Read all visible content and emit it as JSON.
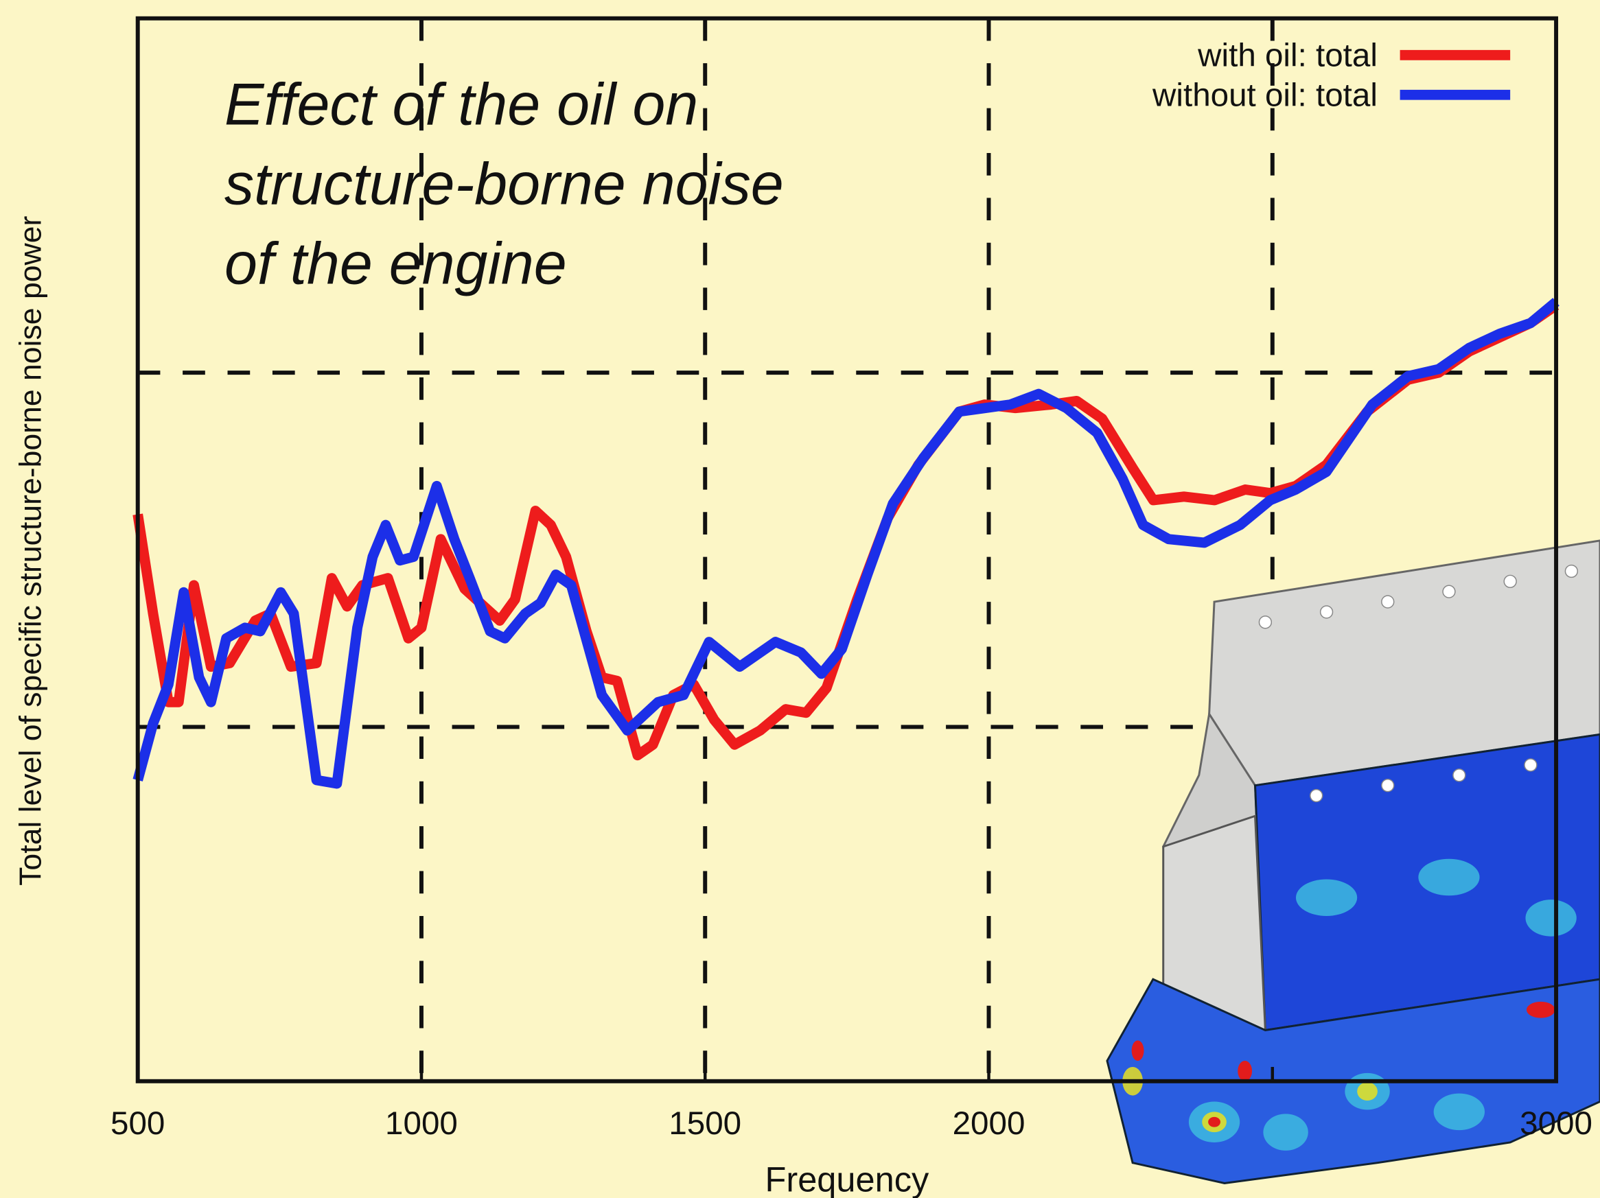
{
  "chart_data": {
    "type": "line",
    "title": [
      "Effect of the oil on",
      "structure-borne noise",
      "of the engine"
    ],
    "title_color": "#e8201c",
    "x_label": "Frequency",
    "y_label": "Total level of specific structure-borne noise power",
    "xlim": [
      500,
      3000
    ],
    "xticks": [
      500,
      1000,
      1500,
      2000,
      2500,
      3000
    ],
    "x_tick_labels_shown": [
      500,
      1000,
      1500,
      2000,
      3000
    ],
    "ylim": [
      0,
      3
    ],
    "ygrid": [
      1,
      2
    ],
    "grid": true,
    "legend": "top-right",
    "series": [
      {
        "name": "with oil: total",
        "color": "#ee1c1c",
        "x": [
          500,
          527,
          554,
          572,
          599,
          629,
          662,
          707,
          734,
          770,
          815,
          842,
          869,
          896,
          941,
          977,
          1000,
          1034,
          1076,
          1138,
          1165,
          1201,
          1228,
          1255,
          1291,
          1318,
          1345,
          1381,
          1408,
          1444,
          1480,
          1516,
          1552,
          1597,
          1642,
          1678,
          1714,
          1768,
          1822,
          1876,
          1948,
          1993,
          2047,
          2110,
          2155,
          2200,
          2254,
          2290,
          2344,
          2398,
          2452,
          2496,
          2541,
          2595,
          2667,
          2739,
          2793,
          2847,
          2901,
          2955,
          3000
        ],
        "values": [
          1.6,
          1.32,
          1.07,
          1.07,
          1.4,
          1.17,
          1.18,
          1.3,
          1.32,
          1.17,
          1.18,
          1.42,
          1.34,
          1.4,
          1.42,
          1.25,
          1.28,
          1.53,
          1.39,
          1.3,
          1.36,
          1.61,
          1.57,
          1.48,
          1.27,
          1.14,
          1.13,
          0.92,
          0.95,
          1.09,
          1.12,
          1.02,
          0.95,
          0.99,
          1.05,
          1.04,
          1.11,
          1.36,
          1.59,
          1.74,
          1.89,
          1.91,
          1.9,
          1.91,
          1.92,
          1.87,
          1.73,
          1.64,
          1.65,
          1.64,
          1.67,
          1.66,
          1.68,
          1.74,
          1.89,
          1.98,
          2.0,
          2.06,
          2.1,
          2.14,
          2.19
        ]
      },
      {
        "name": "without oil: total",
        "color": "#1c2fe8",
        "x": [
          500,
          527,
          554,
          581,
          608,
          629,
          656,
          689,
          716,
          752,
          775,
          815,
          851,
          887,
          914,
          937,
          962,
          986,
          1027,
          1058,
          1085,
          1121,
          1147,
          1183,
          1210,
          1237,
          1264,
          1318,
          1363,
          1417,
          1462,
          1507,
          1561,
          1624,
          1669,
          1705,
          1741,
          1786,
          1831,
          1885,
          1948,
          1993,
          2038,
          2088,
          2137,
          2191,
          2236,
          2272,
          2317,
          2380,
          2443,
          2496,
          2541,
          2595,
          2676,
          2739,
          2793,
          2847,
          2901,
          2955,
          3000
        ],
        "values": [
          0.85,
          1.01,
          1.12,
          1.38,
          1.14,
          1.07,
          1.25,
          1.28,
          1.27,
          1.38,
          1.32,
          0.85,
          0.84,
          1.28,
          1.48,
          1.57,
          1.47,
          1.48,
          1.68,
          1.53,
          1.42,
          1.27,
          1.25,
          1.32,
          1.35,
          1.43,
          1.4,
          1.09,
          0.99,
          1.07,
          1.09,
          1.24,
          1.17,
          1.24,
          1.21,
          1.15,
          1.22,
          1.43,
          1.63,
          1.76,
          1.89,
          1.9,
          1.91,
          1.94,
          1.9,
          1.83,
          1.7,
          1.57,
          1.53,
          1.52,
          1.57,
          1.64,
          1.67,
          1.72,
          1.91,
          1.99,
          2.01,
          2.07,
          2.11,
          2.14,
          2.2
        ]
      }
    ]
  }
}
